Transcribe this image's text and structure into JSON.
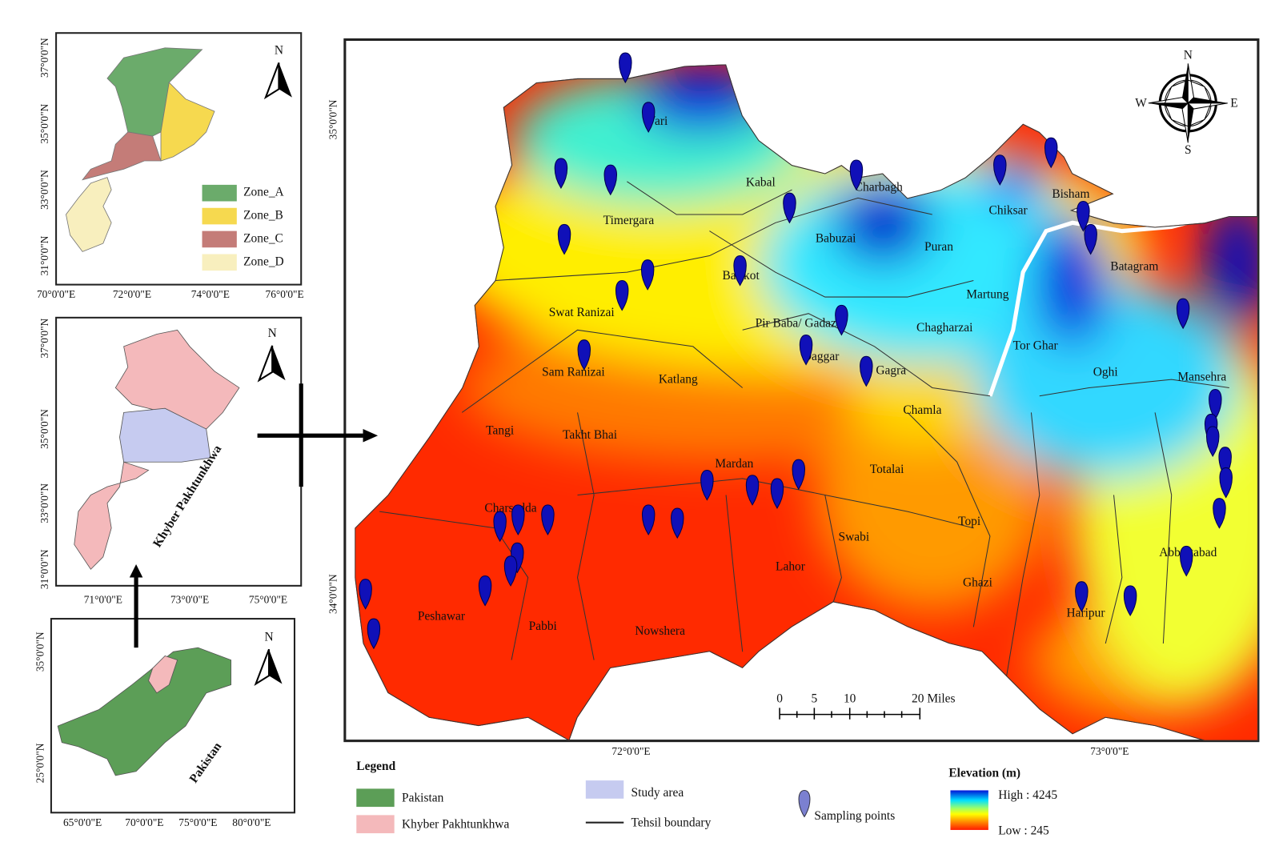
{
  "zone_map": {
    "lat_labels": [
      "37°0'0\"N",
      "35°0'0\"N",
      "33°0'0\"N",
      "31°0'0\"N"
    ],
    "lon_labels": [
      "70°0'0\"E",
      "72°0'0\"E",
      "74°0'0\"E",
      "76°0'0\"E"
    ],
    "north": "N",
    "legend": [
      "Zone_A",
      "Zone_B",
      "Zone_C",
      "Zone_D"
    ]
  },
  "province_map": {
    "lat_labels": [
      "37°0'0\"N",
      "35°0'0\"N",
      "33°0'0\"N",
      "31°0'0\"N"
    ],
    "lon_labels": [
      "71°0'0\"E",
      "73°0'0\"E",
      "75°0'0\"E"
    ],
    "north": "N",
    "label": "Khyber Pakhtunkhwa"
  },
  "country_map": {
    "lat_labels": [
      "35°0'0\"N",
      "25°0'0\"N"
    ],
    "lon_labels": [
      "65°0'0\"E",
      "70°0'0\"E",
      "75°0'0\"E",
      "80°0'0\"E"
    ],
    "north": "N",
    "label": "Pakistan"
  },
  "main_map": {
    "lat_labels": [
      "35°0'0\"N",
      "34°0'0\"N"
    ],
    "lon_labels": [
      "72°0'0\"E",
      "73°0'0\"E"
    ],
    "compass": {
      "n": "N",
      "e": "E",
      "s": "S",
      "w": "W"
    },
    "places": [
      "Wari",
      "Kabal",
      "Charbagh",
      "Chiksar",
      "Bisham",
      "Timergara",
      "Babuzai",
      "Puran",
      "Batagram",
      "Barikot",
      "Martung",
      "Swat Ranizai",
      "Pir Baba/ Gadazai",
      "Chagharzai",
      "Tor Ghar",
      "Sam Ranizai",
      "Daggar",
      "Gagra",
      "Katlang",
      "Oghi",
      "Mansehra",
      "Chamla",
      "Tangi",
      "Takht Bhai",
      "Mardan",
      "Totalai",
      "Charsadda",
      "Topi",
      "Swabi",
      "Abbottabad",
      "Lahor",
      "Ghazi",
      "Peshawar",
      "Haripur",
      "Pabbi",
      "Nowshera"
    ],
    "scale_bar": [
      "0",
      "5",
      "10",
      "20 Miles"
    ]
  },
  "legend": {
    "title": "Legend",
    "items": [
      "Pakistan",
      "Khyber Pakhtunkhwa",
      "Study area",
      "Tehsil boundary",
      "Sampling points"
    ]
  },
  "elevation": {
    "title": "Elevation (m)",
    "high": "High : 4245",
    "low": "Low : 245"
  }
}
